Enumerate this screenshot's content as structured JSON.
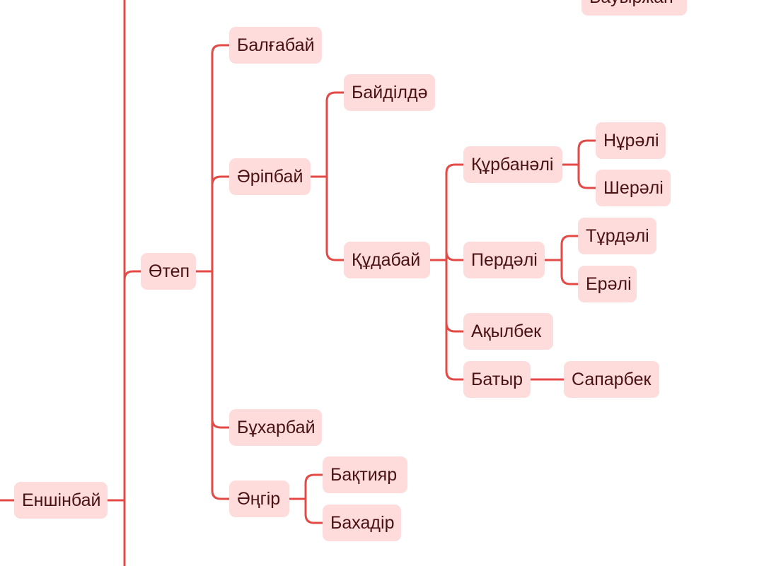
{
  "colors": {
    "connector": "#e34a45",
    "node_fill": "#fedcdc",
    "node_text": "#4a1212"
  },
  "nodes": {
    "bauyrzhan": "Бауыржан",
    "balgabay": "Балғабай",
    "baydildae": "Байділдә",
    "aripbay": "Әріпбай",
    "nurali": "Нұрәлі",
    "kurbanali": "Құрбанәлі",
    "sherali": "Шерәлі",
    "turdali": "Тұрдәлі",
    "otep": "Өтеп",
    "kudabay": "Құдабай",
    "perdali": "Пердәлі",
    "erali": "Ерәлі",
    "akylbek": "Ақылбек",
    "batyr": "Батыр",
    "saparbek": "Сапарбек",
    "bukharbay": "Бұхарбай",
    "baktiyar": "Бақтияр",
    "enshinbay": "Еншінбай",
    "angir": "Әңгір",
    "bakhadir": "Бахадір"
  }
}
